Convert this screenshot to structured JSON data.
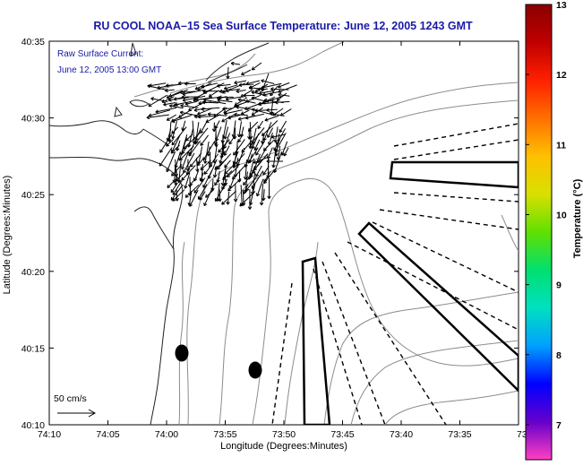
{
  "title": "RU COOL  NOAA–15  Sea Surface Temperature:  June 12, 2005 1243 GMT",
  "annotation": {
    "line1": "Raw Surface Current:",
    "line2": "June 12, 2005 13:00 GMT"
  },
  "axes": {
    "xlabel": "Longitude (Degrees:Minutes)",
    "ylabel": "Latitude (Degrees:Minutes)",
    "xticks": [
      "74:10",
      "74:05",
      "74:00",
      "73:55",
      "73:50",
      "73:45",
      "73:40",
      "73:35",
      "73:3"
    ],
    "yticks": [
      "40:35",
      "40:30",
      "40:25",
      "40:20",
      "40:15",
      "40:10"
    ]
  },
  "scale": {
    "label": "50 cm/s"
  },
  "colorbar": {
    "label": "Temperature (°C)",
    "ticks": [
      "13",
      "12",
      "11",
      "10",
      "9",
      "8",
      "7"
    ],
    "min": 6.5,
    "max": 13,
    "colors": [
      "#ff40c0",
      "#6600cc",
      "#0000ff",
      "#00a0ff",
      "#00e0c0",
      "#00e070",
      "#60e000",
      "#d8e000",
      "#ffc000",
      "#ff7000",
      "#ff2000",
      "#c00000",
      "#8a0000"
    ]
  },
  "map_data": {
    "extent": {
      "lon_west": "74:10",
      "lon_east": "73:30",
      "lat_south": "40:10",
      "lat_north": "40:35"
    },
    "markers": [
      "dot",
      "dot"
    ],
    "features": [
      "coastline",
      "bathymetry-contours",
      "surface-current-vectors",
      "survey-boxes",
      "dashed-transects"
    ]
  }
}
